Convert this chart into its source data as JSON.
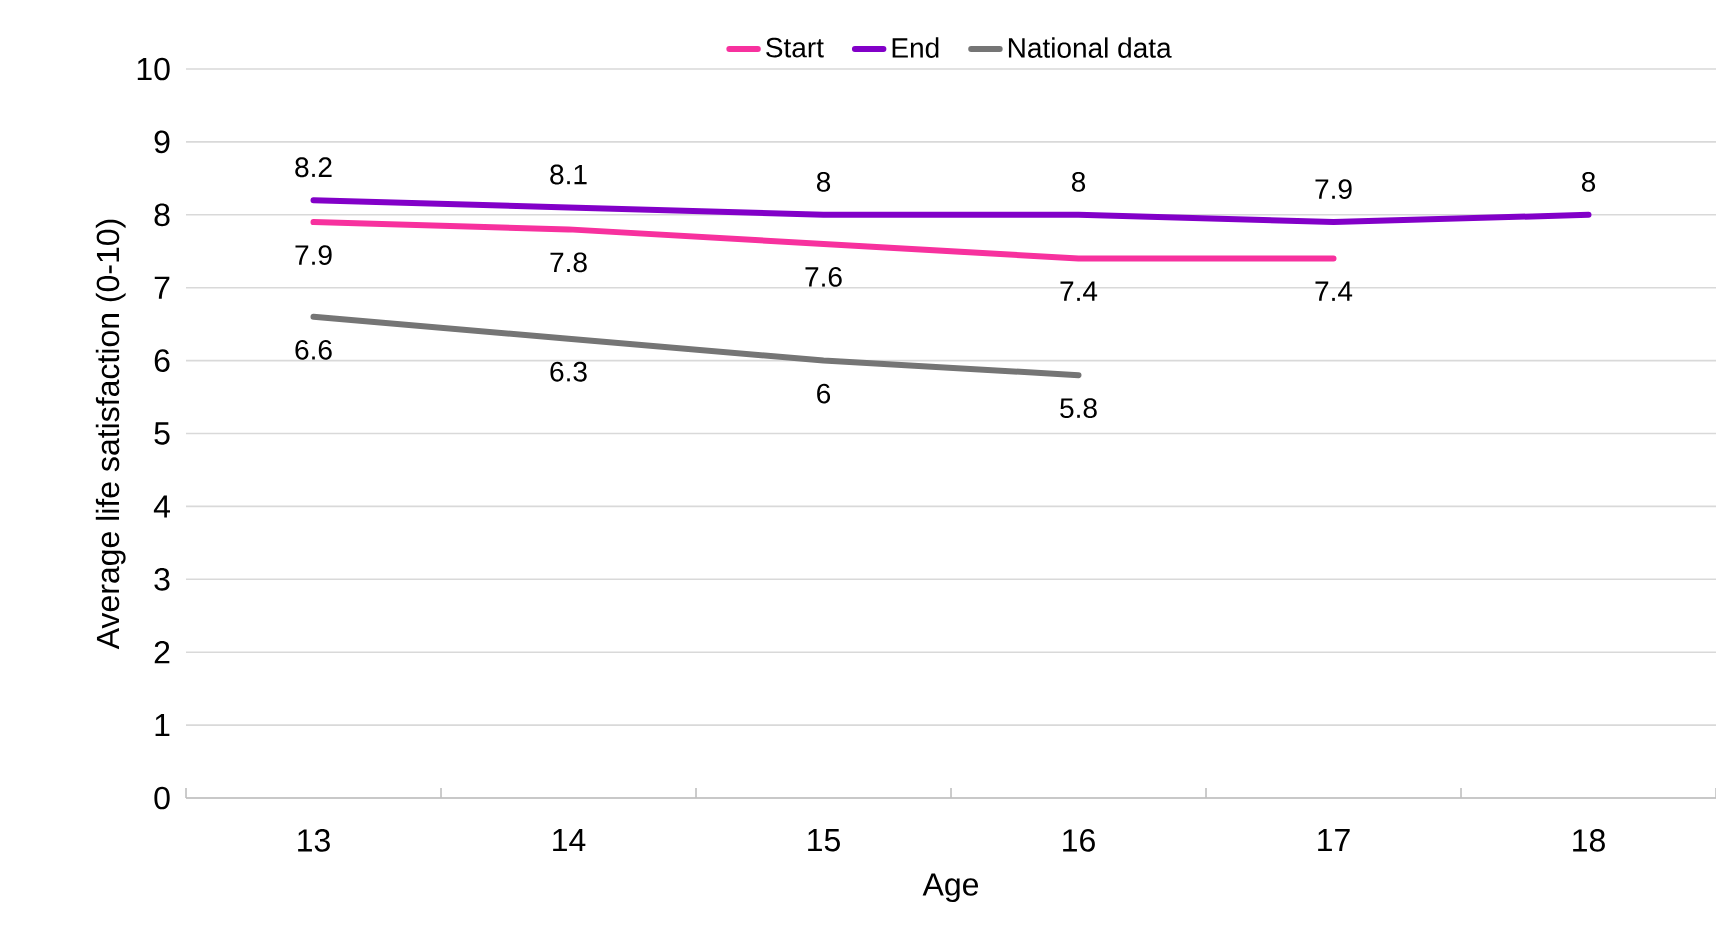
{
  "chart_data": {
    "type": "line",
    "xlabel": "Age",
    "ylabel": "Average life satisfaction (0-10)",
    "categories": [
      "13",
      "14",
      "15",
      "16",
      "17",
      "18"
    ],
    "series": [
      {
        "name": "Start",
        "color": "#f7319e",
        "values": [
          7.9,
          7.8,
          7.6,
          7.4,
          7.4,
          null
        ]
      },
      {
        "name": "End",
        "color": "#8200c8",
        "values": [
          8.2,
          8.1,
          8,
          8,
          7.9,
          8
        ]
      },
      {
        "name": "National data",
        "color": "#757575",
        "values": [
          6.6,
          6.3,
          6,
          5.8,
          null,
          null
        ]
      }
    ],
    "ylim": [
      0,
      10
    ],
    "yticks": [
      0,
      1,
      2,
      3,
      4,
      5,
      6,
      7,
      8,
      9,
      10
    ],
    "grid": "y",
    "legend": "top",
    "data_labels": true,
    "marker": "none",
    "line_style": "solid"
  }
}
